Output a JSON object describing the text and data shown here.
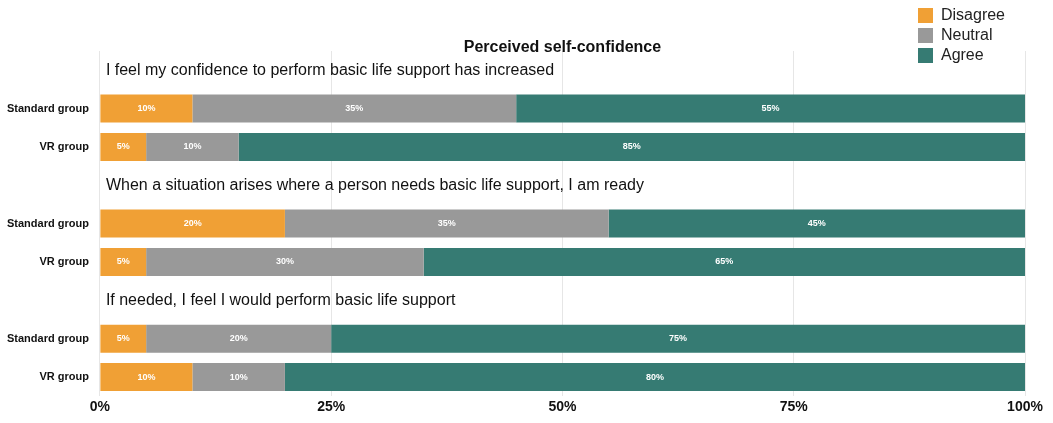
{
  "chart_data": {
    "type": "bar",
    "orientation": "horizontal",
    "stacked": true,
    "title": "Perceived self-confidence",
    "categories": [
      null,
      "Standard group",
      "VR group",
      null,
      "Standard group",
      "VR group",
      null,
      "Standard group",
      "VR group"
    ],
    "series": [
      {
        "name": "Disagree",
        "color": "#f0a035",
        "values": [
          null,
          10,
          5,
          null,
          20,
          5,
          null,
          5,
          10
        ],
        "value_labels": [
          null,
          "10%",
          "5%",
          null,
          "20%",
          "5%",
          null,
          "5%",
          "10%"
        ]
      },
      {
        "name": "Neutral",
        "color": "#999999",
        "values": [
          null,
          35,
          10,
          null,
          35,
          30,
          null,
          20,
          10
        ],
        "value_labels": [
          null,
          "35%",
          "10%",
          null,
          "35%",
          "30%",
          null,
          "20%",
          "10%"
        ]
      },
      {
        "name": "Agree",
        "color": "#367b73",
        "values": [
          null,
          55,
          85,
          null,
          45,
          65,
          null,
          75,
          80
        ],
        "value_labels": [
          null,
          "55%",
          "85%",
          null,
          "45%",
          "65%",
          null,
          "75%",
          "80%"
        ]
      }
    ],
    "annotations": [
      "I feel my confidence to perform basic life support has increased",
      "When a situation arises where a person needs basic life support, I am ready",
      "If needed, I feel I would perform basic life support"
    ],
    "xlim": [
      0,
      100
    ],
    "xticks": [
      {
        "value": 0,
        "label": "0%"
      },
      {
        "value": 25,
        "label": "25%"
      },
      {
        "value": 50,
        "label": "50%"
      },
      {
        "value": 75,
        "label": "75%"
      },
      {
        "value": 100,
        "label": "100%"
      }
    ],
    "grid": "x",
    "legend": "top right"
  }
}
